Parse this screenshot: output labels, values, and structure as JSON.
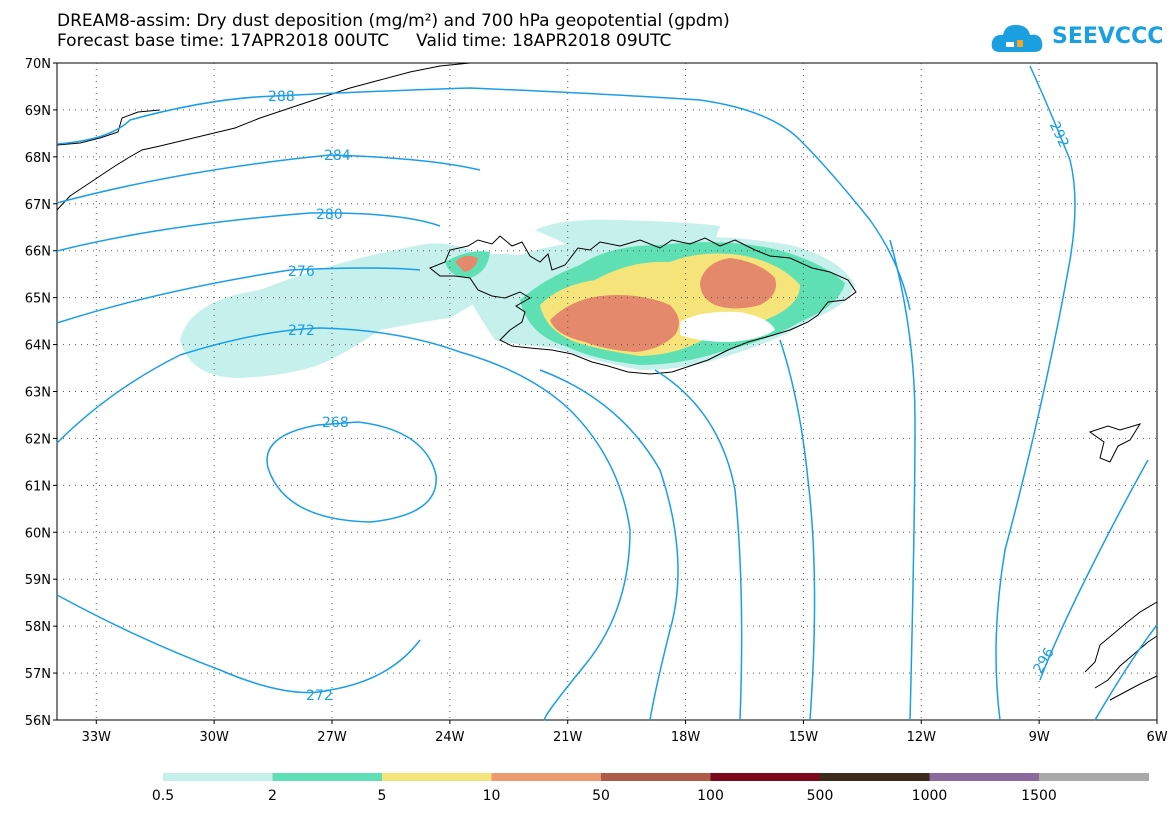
{
  "title": {
    "line1": "DREAM8-assim: Dry dust deposition (mg/m²) and 700 hPa geopotential (gpdm)",
    "line2": "Forecast base time: 17APR2018 00UTC     Valid time: 18APR2018 09UTC"
  },
  "logo": {
    "text": "SEEVCCC",
    "icon": "cloud-logo-icon"
  },
  "axes": {
    "lat_labels": [
      "70N",
      "69N",
      "68N",
      "67N",
      "66N",
      "65N",
      "64N",
      "63N",
      "62N",
      "61N",
      "60N",
      "59N",
      "58N",
      "57N",
      "56N"
    ],
    "lon_labels": [
      "33W",
      "30W",
      "27W",
      "24W",
      "21W",
      "18W",
      "15W",
      "12W",
      "9W",
      "6W"
    ],
    "lat_range": [
      56,
      70
    ],
    "lon_range": [
      -34,
      -6
    ]
  },
  "contours": {
    "color": "#1a9ee8",
    "labels": [
      "288",
      "284",
      "280",
      "276",
      "272",
      "268",
      "292",
      "272",
      "296"
    ]
  },
  "colorbar": {
    "colors": [
      "#c5f0ec",
      "#5ee0b4",
      "#f5e47a",
      "#ec9a6e",
      "#b05a48",
      "#7a0a1c",
      "#3c2a1c",
      "#8c6a9e",
      "#a8a8a8"
    ],
    "labels": [
      "0.5",
      "2",
      "5",
      "10",
      "50",
      "100",
      "500",
      "1000",
      "1500"
    ]
  },
  "dust": {
    "light": "#c5f0ec",
    "green": "#5ee0b4",
    "yellow": "#f5e47a",
    "orange": "#e5896c"
  }
}
